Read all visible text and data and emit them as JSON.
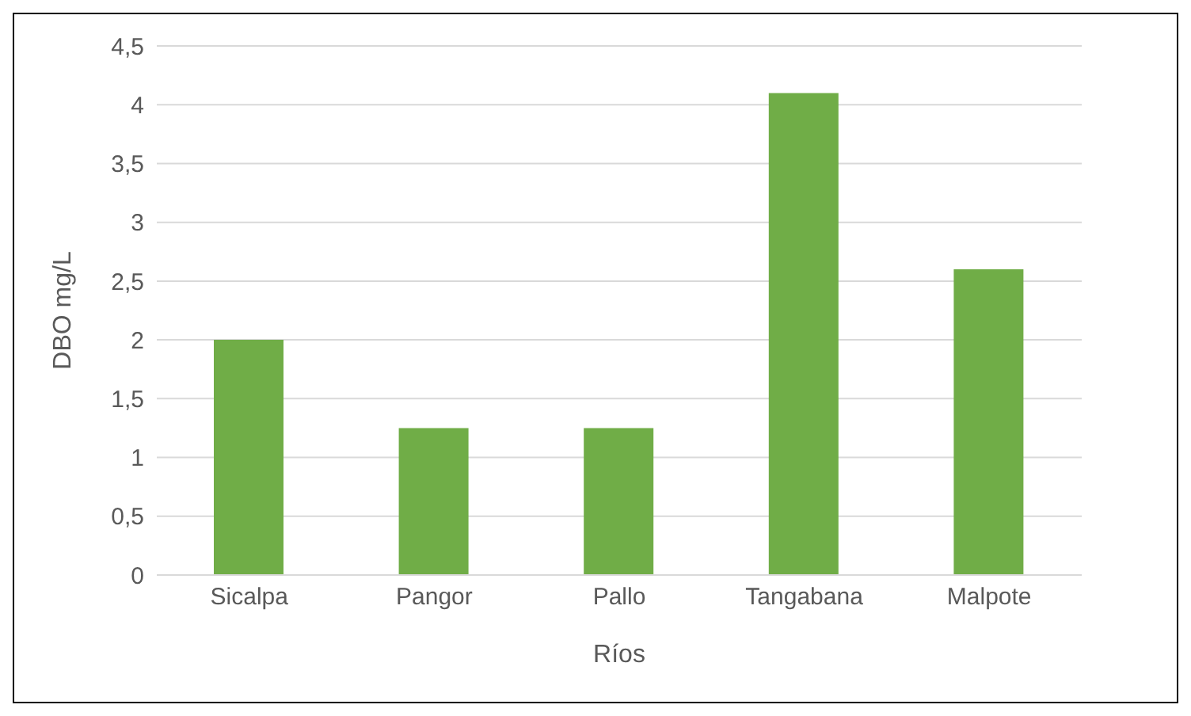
{
  "chart_data": {
    "type": "bar",
    "xlabel": "Ríos",
    "ylabel": "DBO mg/L",
    "categories": [
      "Sicalpa",
      "Pangor",
      "Pallo",
      "Tangabana",
      "Malpote"
    ],
    "values": [
      2.0,
      1.25,
      1.25,
      4.1,
      2.6
    ],
    "color": "#70ad47",
    "ylim": [
      0,
      4.5
    ],
    "yticks": [
      0,
      {
        "value": 0.5,
        "label": "0,5"
      },
      1,
      {
        "value": 1.5,
        "label": "1,5"
      },
      2,
      {
        "value": 2.5,
        "label": "2,5"
      },
      3,
      {
        "value": 3.5,
        "label": "3,5"
      },
      4,
      {
        "value": 4.5,
        "label": "4,5"
      }
    ],
    "grid": "y",
    "legend": false
  }
}
